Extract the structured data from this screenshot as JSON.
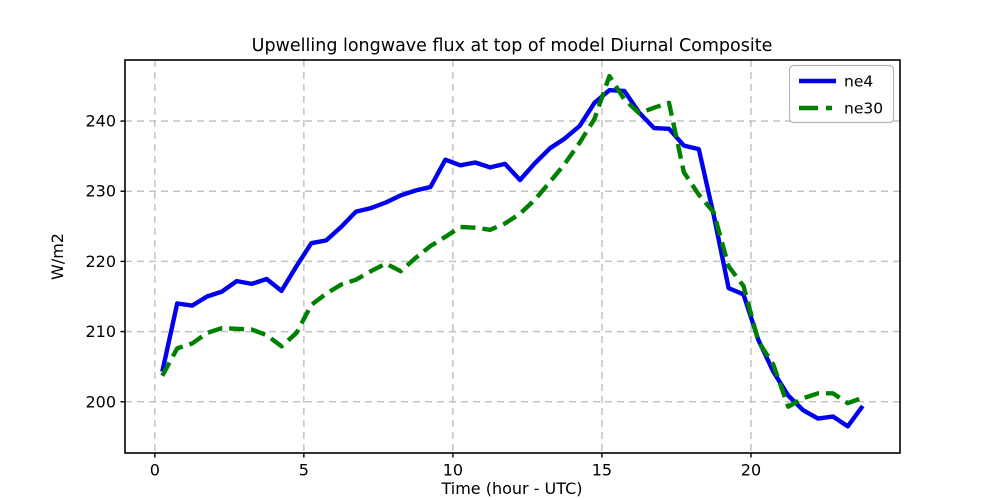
{
  "chart_data": {
    "type": "line",
    "title": "Upwelling longwave flux at top of model Diurnal Composite",
    "xlabel": "Time (hour - UTC)",
    "ylabel": "W/m2",
    "xlim": [
      -1.0,
      25.0
    ],
    "ylim": [
      192.7,
      248.7
    ],
    "xticks": [
      0,
      5,
      10,
      15,
      20
    ],
    "yticks": [
      200,
      210,
      220,
      230,
      240
    ],
    "grid": true,
    "grid_style": "dashed",
    "legend_position": "upper right",
    "background_color": "#ffffff",
    "grid_color": "#c3c3c3",
    "x": [
      0.25,
      0.75,
      1.25,
      1.75,
      2.25,
      2.75,
      3.25,
      3.75,
      4.25,
      4.75,
      5.25,
      5.75,
      6.25,
      6.75,
      7.25,
      7.75,
      8.25,
      8.75,
      9.25,
      9.75,
      10.25,
      10.75,
      11.25,
      11.75,
      12.25,
      12.75,
      13.25,
      13.75,
      14.25,
      14.75,
      15.25,
      15.75,
      16.25,
      16.75,
      17.25,
      17.75,
      18.25,
      18.75,
      19.25,
      19.75,
      20.25,
      20.75,
      21.25,
      21.75,
      22.25,
      22.75,
      23.25,
      23.75
    ],
    "series": [
      {
        "name": "ne4",
        "color": "#0000ee",
        "style": "solid",
        "values": [
          204.3,
          214.0,
          213.7,
          215.0,
          215.7,
          217.2,
          216.8,
          217.5,
          215.8,
          219.3,
          222.6,
          223.0,
          224.9,
          227.1,
          227.6,
          228.4,
          229.4,
          230.1,
          230.6,
          234.5,
          233.7,
          234.1,
          233.4,
          233.9,
          231.6,
          234.0,
          236.1,
          237.5,
          239.3,
          242.6,
          244.4,
          244.3,
          241.2,
          239.0,
          238.9,
          236.5,
          236.0,
          226.6,
          216.2,
          215.3,
          208.8,
          204.3,
          200.9,
          198.8,
          197.6,
          197.9,
          196.5,
          199.4
        ]
      },
      {
        "name": "ne30",
        "color": "#008000",
        "style": "dashed",
        "values": [
          203.7,
          207.6,
          208.3,
          209.8,
          210.5,
          210.4,
          210.3,
          209.5,
          207.9,
          209.8,
          213.8,
          215.4,
          216.7,
          217.4,
          218.6,
          219.7,
          218.6,
          220.5,
          222.2,
          223.5,
          224.9,
          224.8,
          224.5,
          225.4,
          226.8,
          228.8,
          231.3,
          233.9,
          236.9,
          240.3,
          246.4,
          243.1,
          241.1,
          241.9,
          242.6,
          232.7,
          229.5,
          227.0,
          219.3,
          216.5,
          208.6,
          205.3,
          199.3,
          200.5,
          201.2,
          201.2,
          199.8,
          200.6
        ]
      }
    ]
  }
}
